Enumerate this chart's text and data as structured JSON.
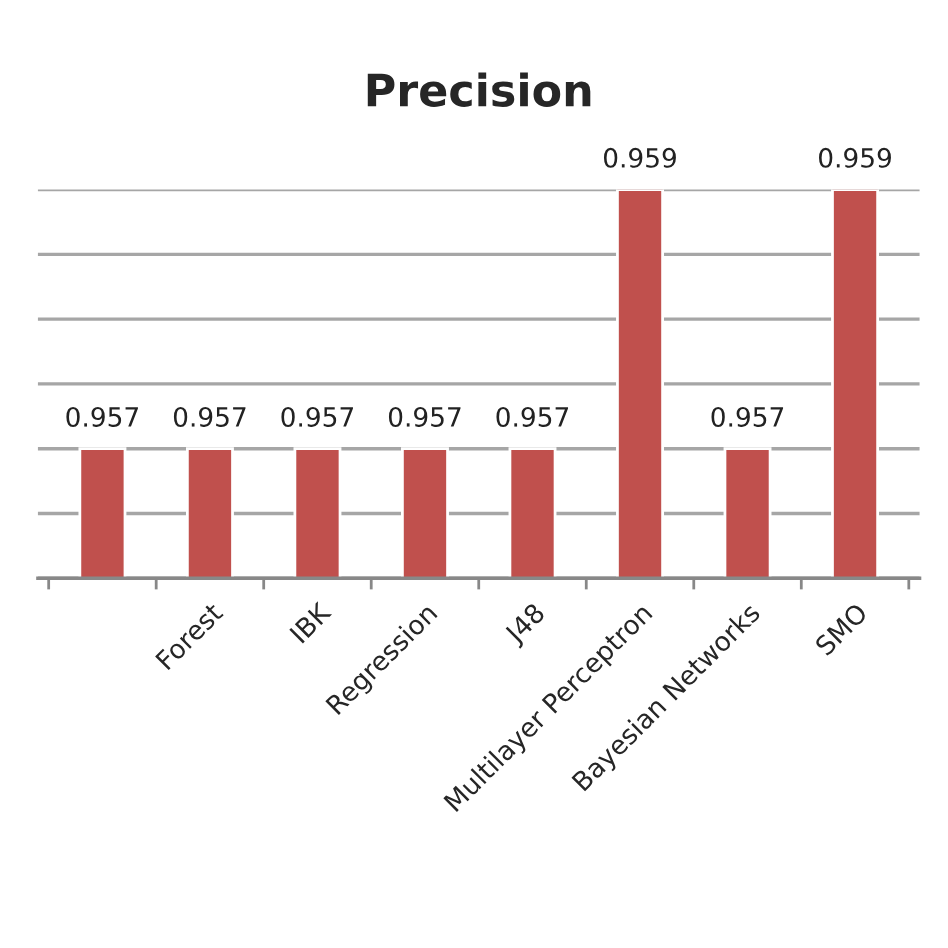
{
  "chart_data": {
    "type": "bar",
    "title": "Precision",
    "categories": [
      null,
      "Forest",
      "IBK",
      "Regression",
      "J48",
      "Multilayer Perceptron",
      "Bayesian Networks",
      "SMO"
    ],
    "values": [
      0.957,
      0.957,
      0.957,
      0.957,
      0.957,
      0.959,
      0.957,
      0.959
    ],
    "color": "#c0504d",
    "ylim": [
      0.956,
      0.959
    ],
    "yticks": [
      {
        "value": 0.956,
        "label": null
      },
      {
        "value": 0.9565,
        "label": null
      },
      {
        "value": 0.957,
        "label": null
      },
      {
        "value": 0.9575,
        "label": null
      },
      {
        "value": 0.958,
        "label": null
      },
      {
        "value": 0.9585,
        "label": null
      },
      {
        "value": 0.959,
        "label": null
      }
    ],
    "grid": "y",
    "tick_labels": "x",
    "data_labels": true
  }
}
